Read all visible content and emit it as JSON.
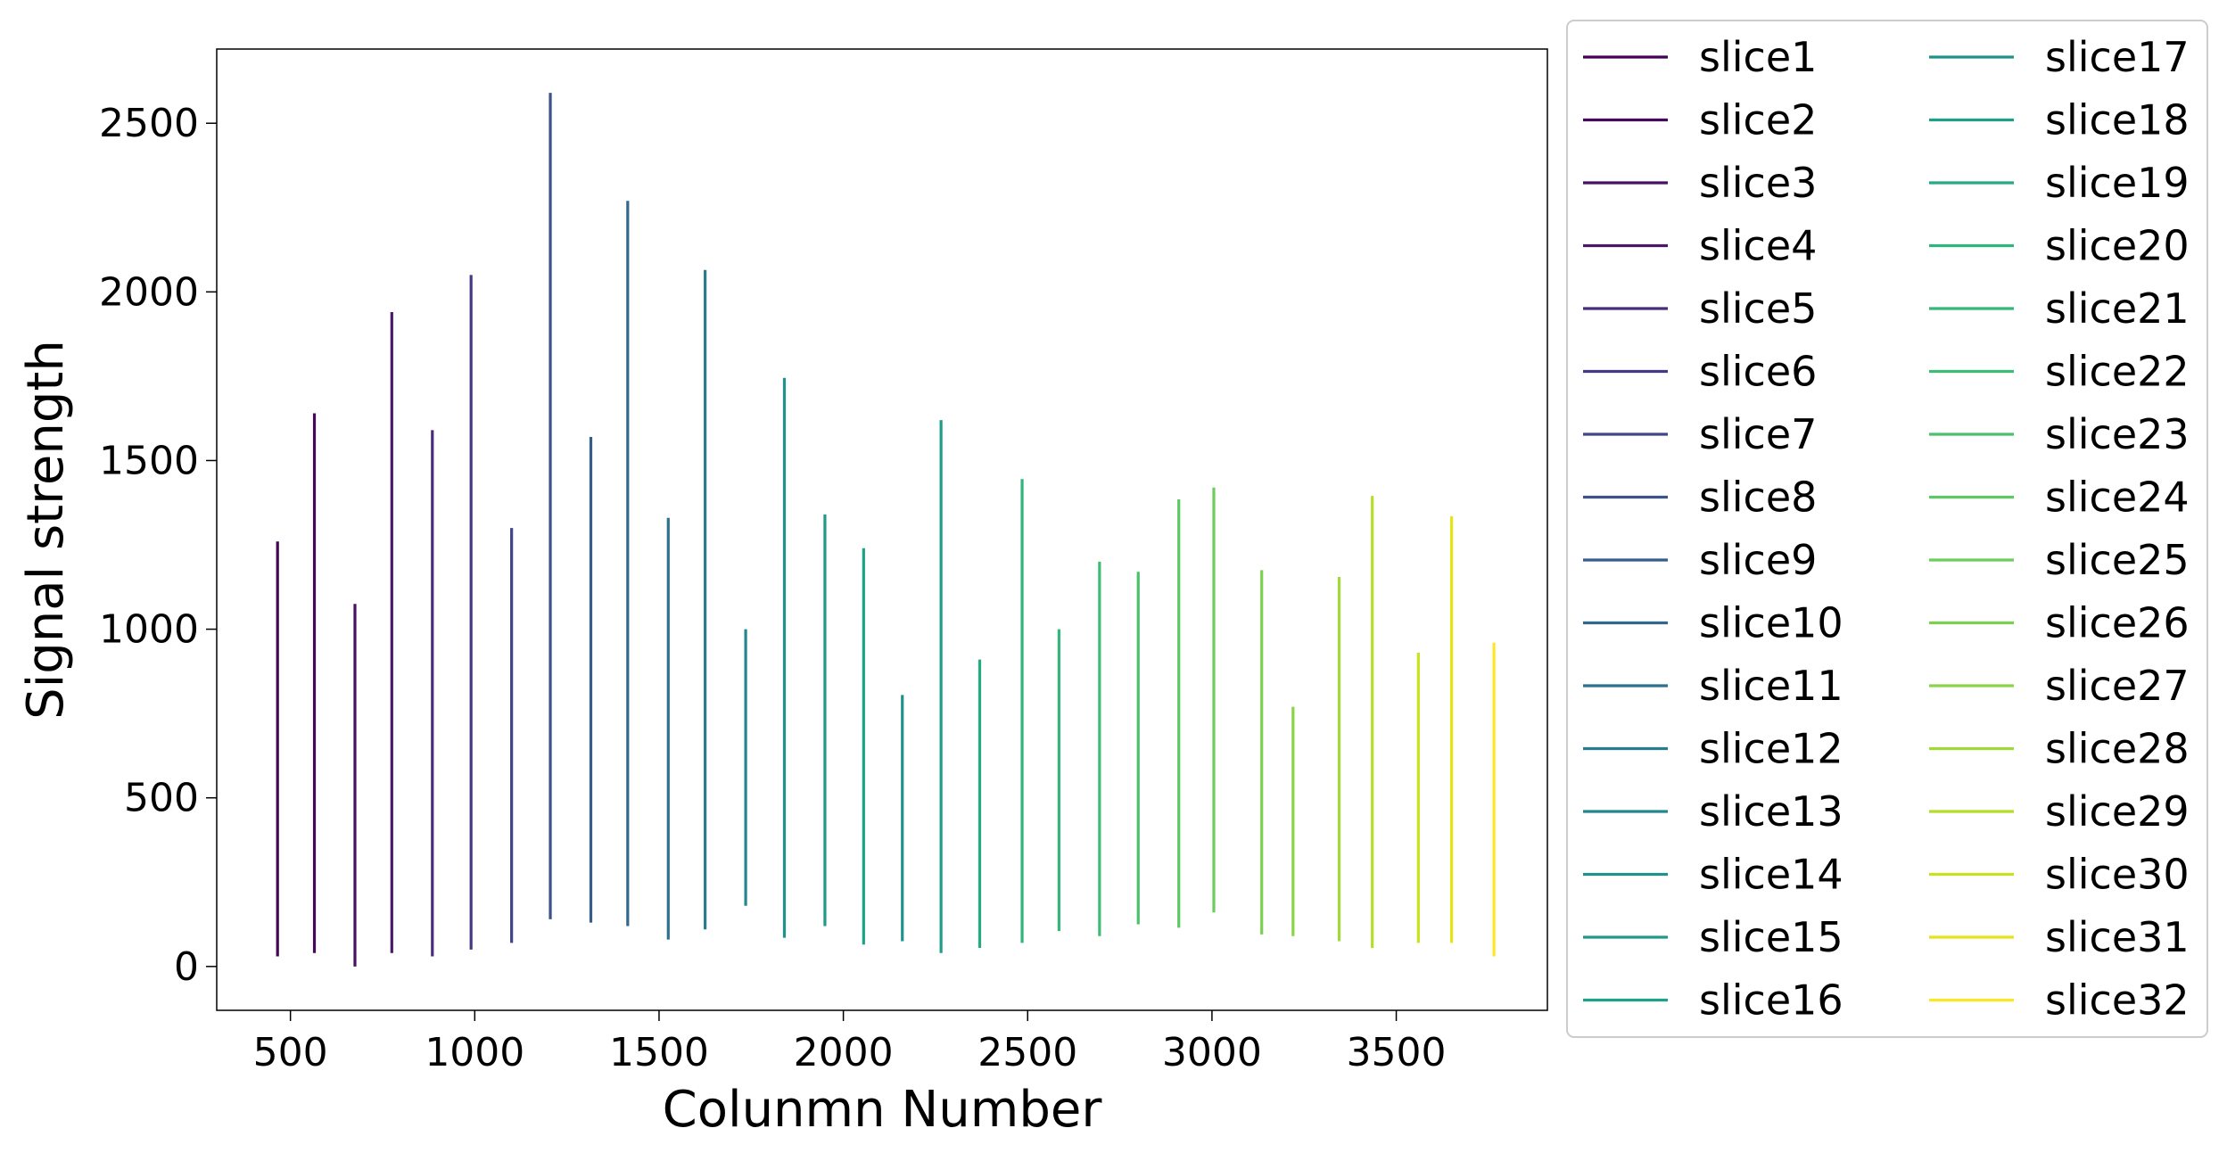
{
  "chart_data": {
    "type": "line",
    "title": "",
    "xlabel": "Colunmn Number",
    "ylabel": "Signal strength",
    "xlim": [
      300,
      3910
    ],
    "ylim": [
      -130,
      2720
    ],
    "x_ticks": [
      500,
      1000,
      1500,
      2000,
      2500,
      3000,
      3500
    ],
    "y_ticks": [
      0,
      500,
      1000,
      1500,
      2000,
      2500
    ],
    "x_tick_labels": [
      "500",
      "1000",
      "1500",
      "2000",
      "2500",
      "3000",
      "3500"
    ],
    "y_tick_labels": [
      "0",
      "500",
      "1000",
      "1500",
      "2000",
      "2500"
    ],
    "grid": false,
    "legend_position": "outside-right",
    "legend_columns": 2,
    "colormap": "viridis",
    "series": [
      {
        "name": "slice1",
        "x": 465,
        "y_min": 30,
        "y_max": 1260,
        "color": "#440154"
      },
      {
        "name": "slice2",
        "x": 565,
        "y_min": 40,
        "y_max": 1640,
        "color": "#46085c"
      },
      {
        "name": "slice3",
        "x": 675,
        "y_min": 0,
        "y_max": 1075,
        "color": "#471164"
      },
      {
        "name": "slice4",
        "x": 775,
        "y_min": 40,
        "y_max": 1940,
        "color": "#48186a"
      },
      {
        "name": "slice5",
        "x": 885,
        "y_min": 30,
        "y_max": 1590,
        "color": "#472d7b"
      },
      {
        "name": "slice6",
        "x": 990,
        "y_min": 50,
        "y_max": 2050,
        "color": "#443983"
      },
      {
        "name": "slice7",
        "x": 1100,
        "y_min": 70,
        "y_max": 1300,
        "color": "#404688"
      },
      {
        "name": "slice8",
        "x": 1205,
        "y_min": 140,
        "y_max": 2590,
        "color": "#3b528b"
      },
      {
        "name": "slice9",
        "x": 1315,
        "y_min": 130,
        "y_max": 1570,
        "color": "#365c8d"
      },
      {
        "name": "slice10",
        "x": 1415,
        "y_min": 120,
        "y_max": 2270,
        "color": "#31688e"
      },
      {
        "name": "slice11",
        "x": 1525,
        "y_min": 80,
        "y_max": 1330,
        "color": "#2c728e"
      },
      {
        "name": "slice12",
        "x": 1625,
        "y_min": 110,
        "y_max": 2065,
        "color": "#287c8e"
      },
      {
        "name": "slice13",
        "x": 1735,
        "y_min": 180,
        "y_max": 1000,
        "color": "#24868e"
      },
      {
        "name": "slice14",
        "x": 1840,
        "y_min": 85,
        "y_max": 1745,
        "color": "#21918c"
      },
      {
        "name": "slice15",
        "x": 1950,
        "y_min": 120,
        "y_max": 1340,
        "color": "#1f9a8a"
      },
      {
        "name": "slice16",
        "x": 2055,
        "y_min": 65,
        "y_max": 1240,
        "color": "#1fa188"
      },
      {
        "name": "slice17",
        "x": 2160,
        "y_min": 75,
        "y_max": 805,
        "color": "#21918c"
      },
      {
        "name": "slice18",
        "x": 2265,
        "y_min": 40,
        "y_max": 1620,
        "color": "#1f9e89"
      },
      {
        "name": "slice19",
        "x": 2370,
        "y_min": 55,
        "y_max": 910,
        "color": "#25ab82"
      },
      {
        "name": "slice20",
        "x": 2485,
        "y_min": 70,
        "y_max": 1445,
        "color": "#2fb47c"
      },
      {
        "name": "slice21",
        "x": 2585,
        "y_min": 105,
        "y_max": 1000,
        "color": "#35b779"
      },
      {
        "name": "slice22",
        "x": 2695,
        "y_min": 90,
        "y_max": 1200,
        "color": "#3dbc74"
      },
      {
        "name": "slice23",
        "x": 2800,
        "y_min": 125,
        "y_max": 1170,
        "color": "#4ac16d"
      },
      {
        "name": "slice24",
        "x": 2910,
        "y_min": 115,
        "y_max": 1385,
        "color": "#5ec962"
      },
      {
        "name": "slice25",
        "x": 3005,
        "y_min": 160,
        "y_max": 1420,
        "color": "#6ccd5a"
      },
      {
        "name": "slice26",
        "x": 3135,
        "y_min": 95,
        "y_max": 1175,
        "color": "#7ad151"
      },
      {
        "name": "slice27",
        "x": 3220,
        "y_min": 90,
        "y_max": 770,
        "color": "#89d548"
      },
      {
        "name": "slice28",
        "x": 3345,
        "y_min": 75,
        "y_max": 1155,
        "color": "#a0da39"
      },
      {
        "name": "slice29",
        "x": 3435,
        "y_min": 55,
        "y_max": 1395,
        "color": "#b5de2b"
      },
      {
        "name": "slice30",
        "x": 3560,
        "y_min": 70,
        "y_max": 930,
        "color": "#cae11f"
      },
      {
        "name": "slice31",
        "x": 3650,
        "y_min": 70,
        "y_max": 1335,
        "color": "#e5e419"
      },
      {
        "name": "slice32",
        "x": 3765,
        "y_min": 30,
        "y_max": 960,
        "color": "#fde725"
      }
    ]
  }
}
